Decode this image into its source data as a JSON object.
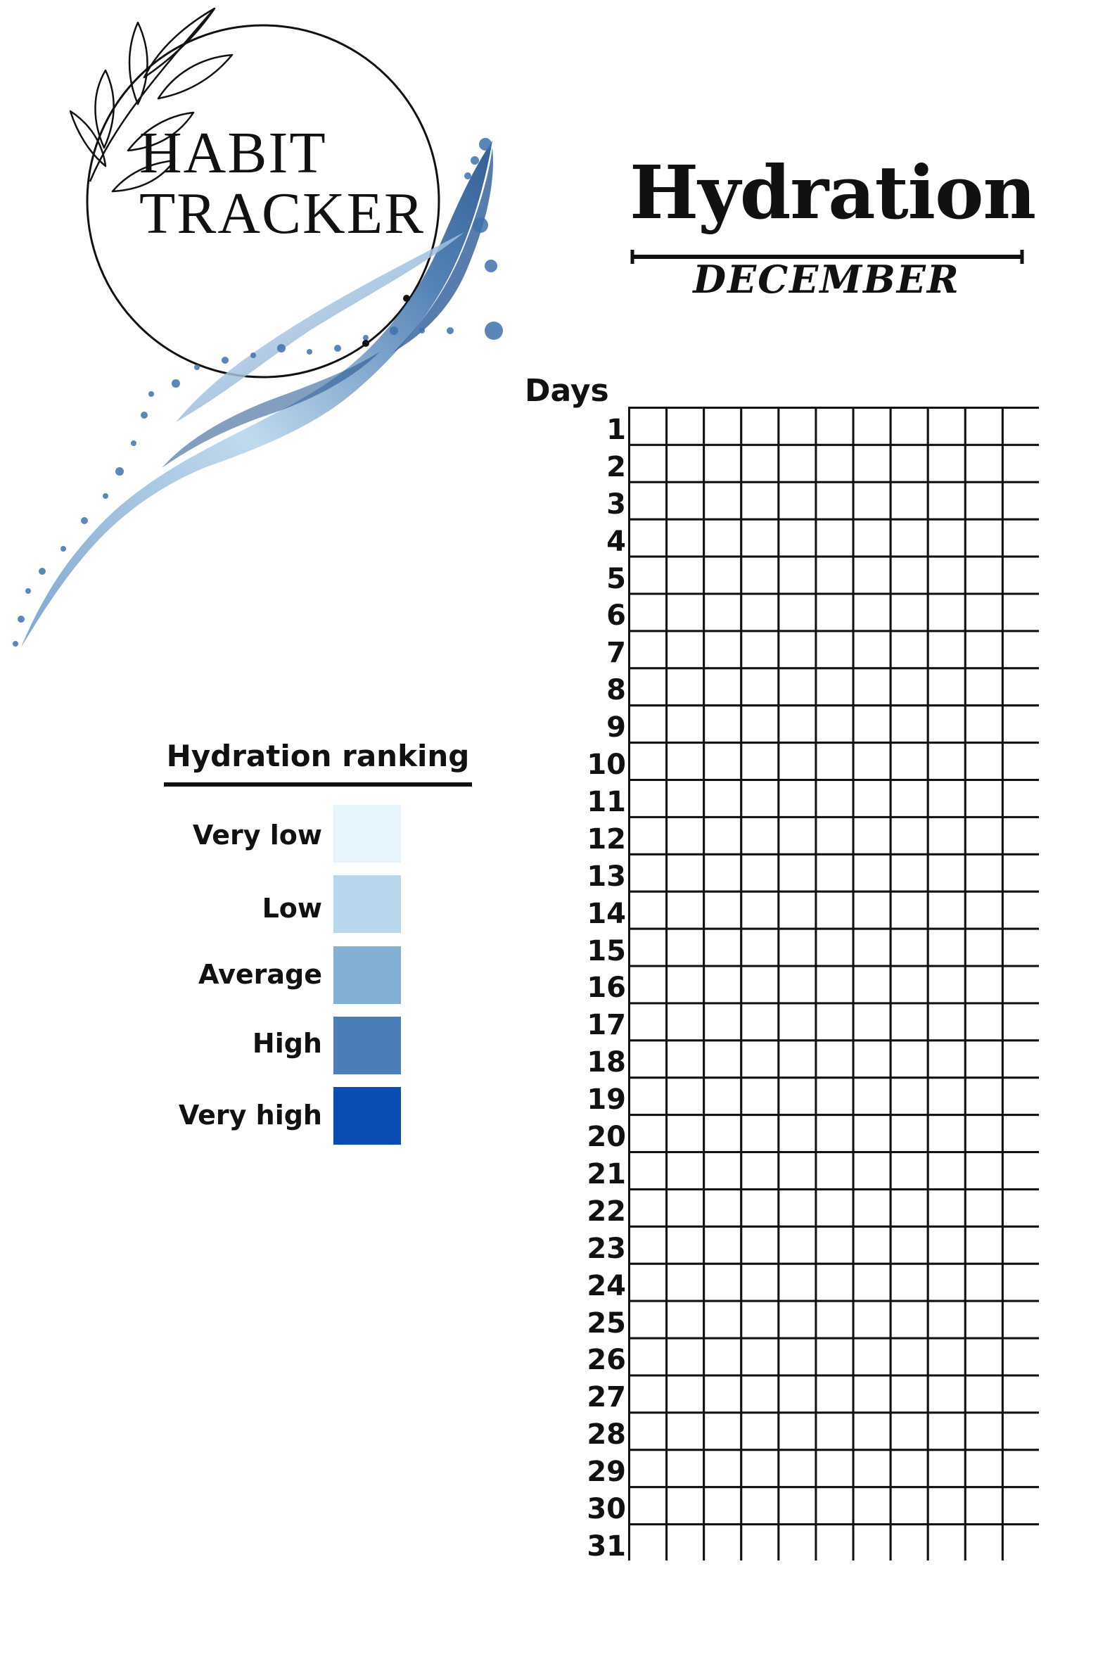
{
  "logo": {
    "line1": "HABIT",
    "line2": "TRACKER",
    "ring_icon": "circle-ring-icon",
    "leaf_icon": "leaf-branch-icon",
    "splash_icon": "water-splash-icon"
  },
  "header": {
    "title": "Hydration",
    "month": "DECEMBER"
  },
  "legend": {
    "title": "Hydration ranking",
    "items": [
      {
        "label": "Very low",
        "color": "#e6f4fb"
      },
      {
        "label": "Low",
        "color": "#b8d7ec"
      },
      {
        "label": "Average",
        "color": "#82b0d5"
      },
      {
        "label": "High",
        "color": "#4b7db8"
      },
      {
        "label": "Very high",
        "color": "#0a4db3"
      }
    ]
  },
  "tracker": {
    "days_header": "Days",
    "days": [
      "1",
      "2",
      "3",
      "4",
      "5",
      "6",
      "7",
      "8",
      "9",
      "10",
      "11",
      "12",
      "13",
      "14",
      "15",
      "16",
      "17",
      "18",
      "19",
      "20",
      "21",
      "22",
      "23",
      "24",
      "25",
      "26",
      "27",
      "28",
      "29",
      "30",
      "31"
    ],
    "columns_per_day": 11,
    "line_color": "#111111"
  }
}
